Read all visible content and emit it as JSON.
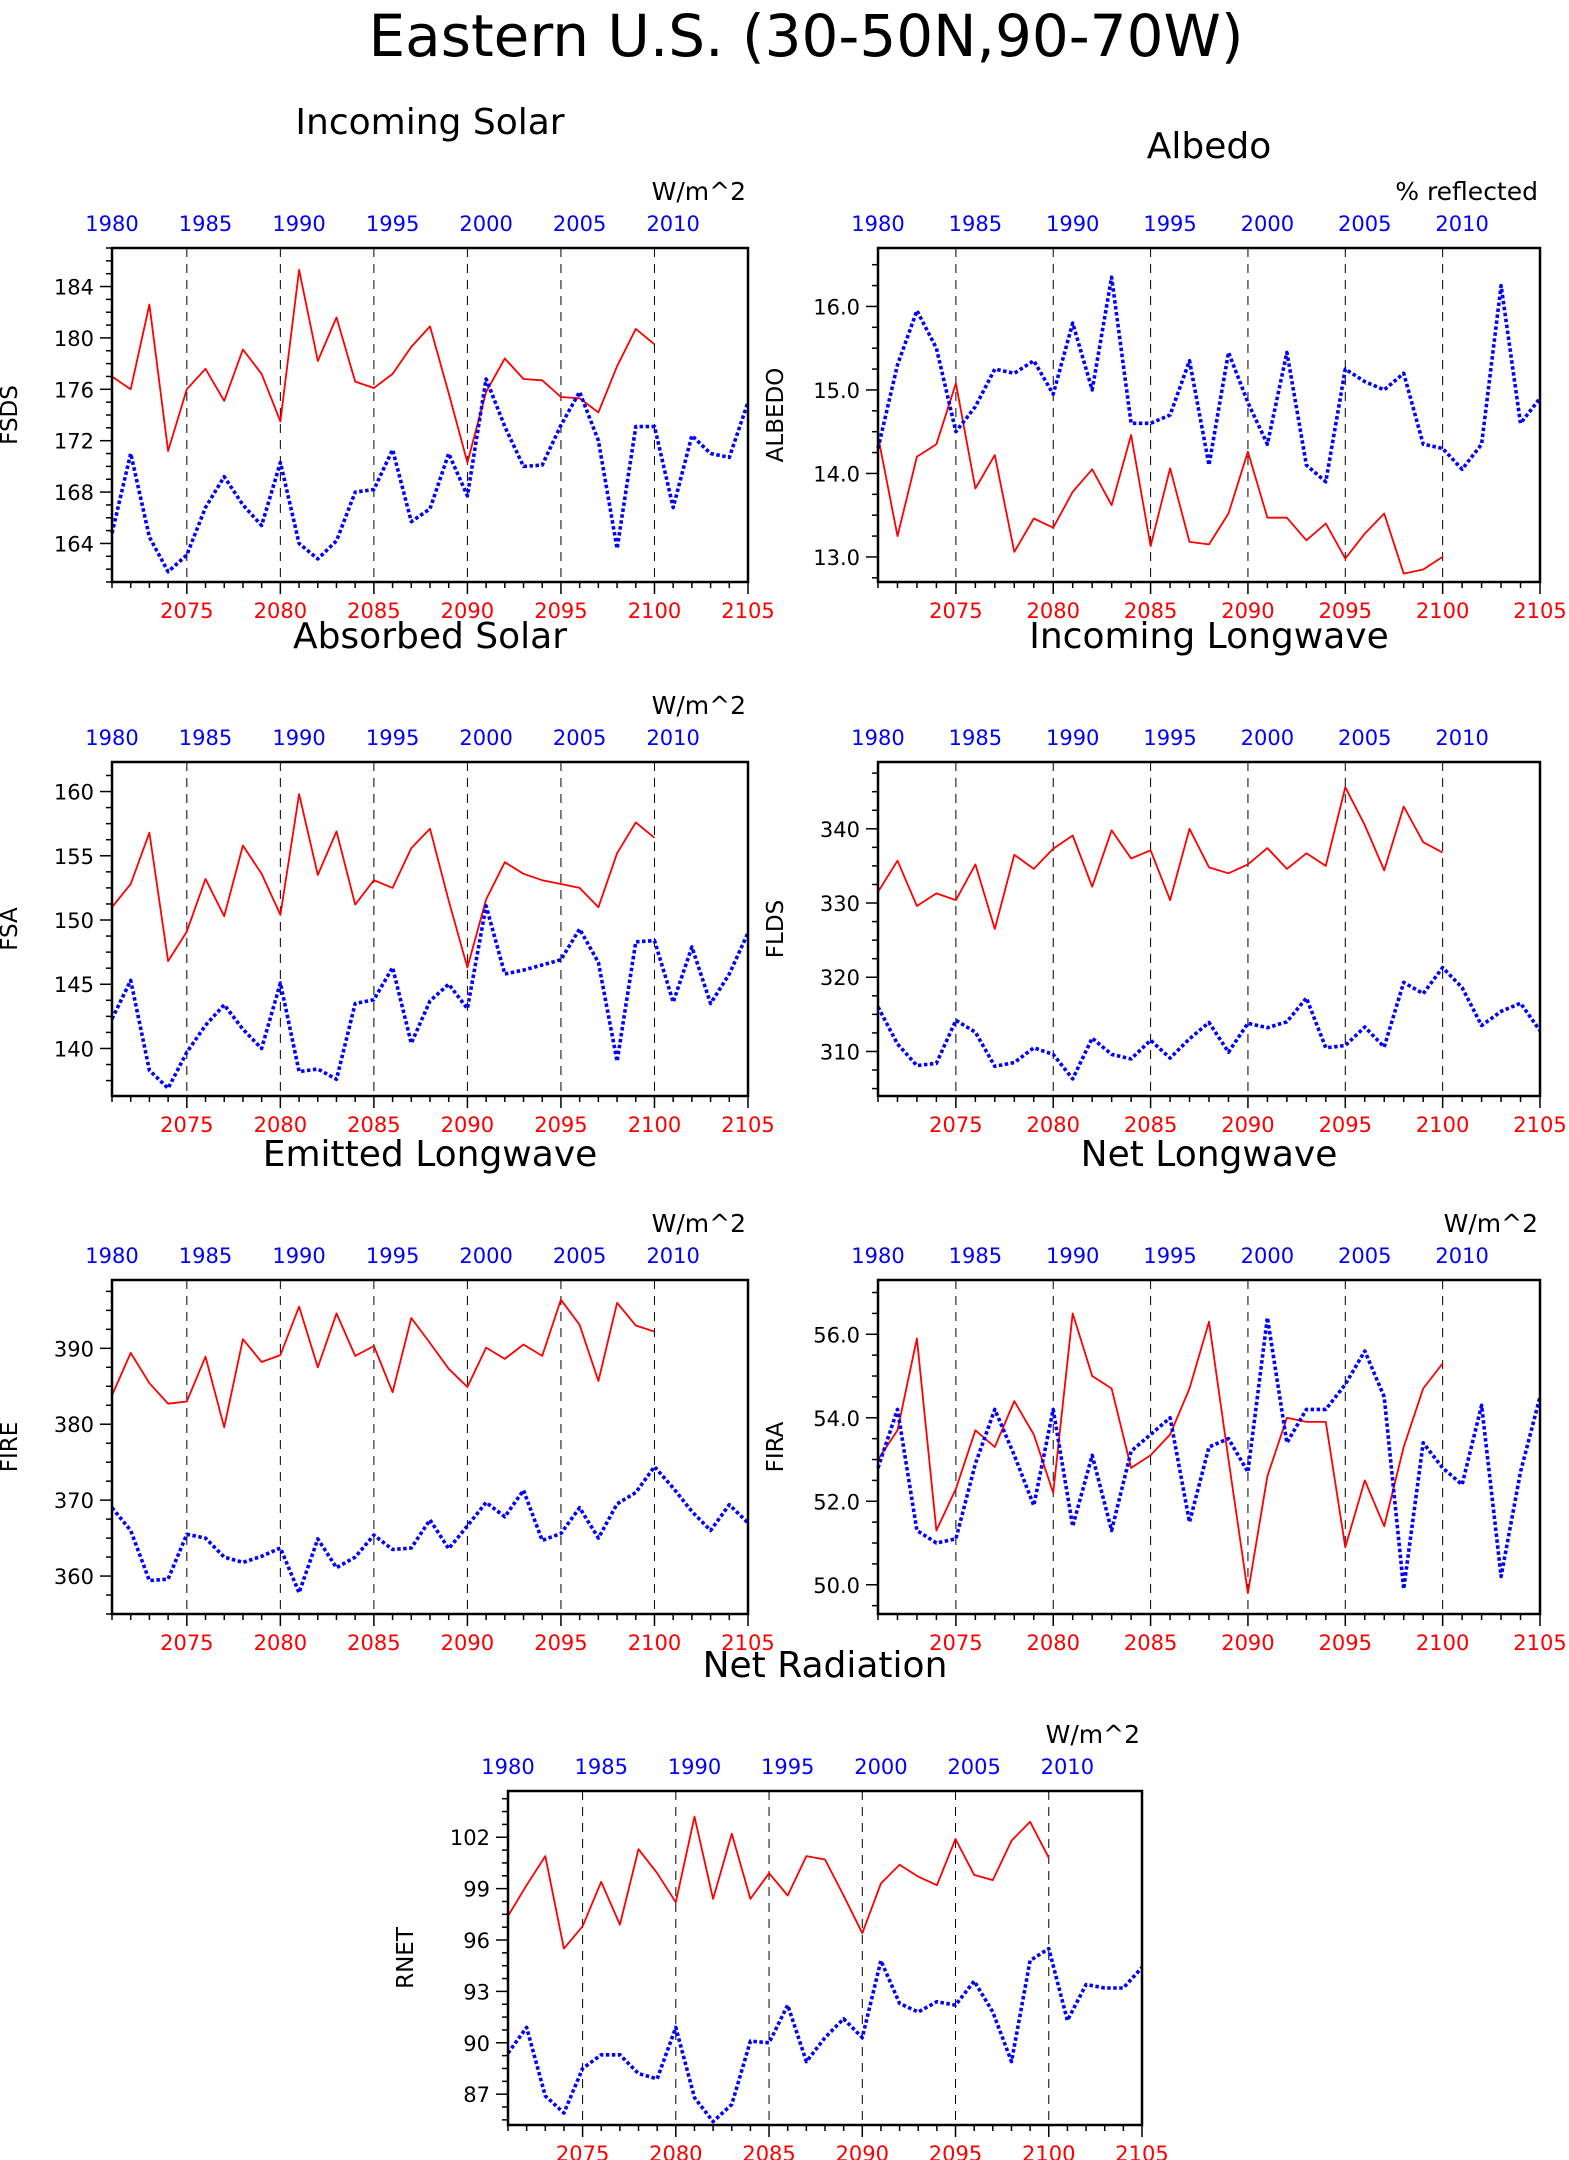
{
  "figure": {
    "title": "Eastern U.S. (30-50N,90-70W)",
    "colors": {
      "model": "#ff0000",
      "obs": "#0000ff",
      "frame": "#000000"
    }
  },
  "chart_data": [
    {
      "type": "line",
      "title": "Incoming Solar",
      "units": "W/m^2",
      "ylabel": "FSDS",
      "xlim_bottom": [
        2071,
        2105
      ],
      "xlim_top": [
        1980,
        2014
      ],
      "xticks_bottom": [
        2075,
        2080,
        2085,
        2090,
        2095,
        2100,
        2105
      ],
      "xticks_top": [
        1980,
        1985,
        1990,
        1995,
        2000,
        2005,
        2010
      ],
      "ylim": [
        161,
        187
      ],
      "yticks": [
        164,
        168,
        172,
        176,
        180,
        184
      ],
      "ytick_labels": [
        "164",
        "168",
        "172",
        "176",
        "180",
        "184"
      ],
      "grid_x": [
        2075,
        2080,
        2085,
        2090,
        2095,
        2100
      ],
      "series": [
        {
          "axis": "bottom",
          "style": "solid",
          "color": "#ff0000",
          "x_start": 2071,
          "values": [
            177,
            176,
            182.6,
            171.2,
            176.0,
            177.6,
            175.1,
            179.1,
            177.2,
            173.5,
            185.3,
            178.2,
            181.6,
            176.6,
            176.1,
            177.2,
            179.3,
            180.9,
            175.7,
            170.3,
            175.8,
            178.4,
            176.8,
            176.7,
            175.4,
            175.3,
            174.2,
            177.8,
            180.7,
            179.5
          ]
        },
        {
          "axis": "top",
          "style": "dotted",
          "color": "#0000ff",
          "x_start": 1980,
          "values": [
            164.8,
            171.0,
            164.5,
            161.8,
            163.1,
            166.8,
            169.2,
            167.0,
            165.4,
            170.3,
            164.0,
            162.8,
            164.2,
            168.0,
            168.2,
            171.3,
            165.7,
            166.7,
            171.0,
            167.7,
            176.8,
            173.1,
            170.0,
            170.1,
            173.2,
            175.8,
            172.0,
            163.6,
            173.1,
            173.1,
            166.8,
            172.4,
            171.0,
            170.7,
            175.0
          ]
        }
      ]
    },
    {
      "type": "line",
      "title": "Albedo",
      "units": "% reflected",
      "ylabel": "ALBEDO",
      "xlim_bottom": [
        2071,
        2105
      ],
      "xlim_top": [
        1980,
        2014
      ],
      "xticks_bottom": [
        2075,
        2080,
        2085,
        2090,
        2095,
        2100,
        2105
      ],
      "xticks_top": [
        1980,
        1985,
        1990,
        1995,
        2000,
        2005,
        2010
      ],
      "ylim": [
        12.7,
        16.7
      ],
      "yticks": [
        13.0,
        14.0,
        15.0,
        16.0
      ],
      "ytick_labels": [
        "13.0",
        "14.0",
        "15.0",
        "16.0"
      ],
      "grid_x": [
        2075,
        2080,
        2085,
        2090,
        2095,
        2100
      ],
      "series": [
        {
          "axis": "bottom",
          "style": "solid",
          "color": "#ff0000",
          "x_start": 2071,
          "values": [
            14.45,
            13.25,
            14.2,
            14.35,
            15.08,
            13.82,
            14.22,
            13.06,
            13.46,
            13.35,
            13.78,
            14.05,
            13.62,
            14.46,
            13.13,
            14.06,
            13.18,
            13.15,
            13.52,
            14.26,
            13.47,
            13.47,
            13.2,
            13.4,
            12.98,
            13.28,
            13.52,
            12.8,
            12.85,
            13.0
          ]
        },
        {
          "axis": "top",
          "style": "dotted",
          "color": "#0000ff",
          "x_start": 1980,
          "values": [
            14.3,
            15.3,
            15.95,
            15.5,
            14.5,
            14.8,
            15.25,
            15.2,
            15.35,
            14.95,
            15.8,
            15.0,
            16.35,
            14.6,
            14.6,
            14.7,
            15.35,
            14.1,
            15.45,
            14.85,
            14.35,
            15.45,
            14.1,
            13.9,
            15.25,
            15.1,
            15.0,
            15.2,
            14.35,
            14.3,
            14.05,
            14.35,
            16.25,
            14.6,
            14.9
          ]
        }
      ]
    },
    {
      "type": "line",
      "title": "Absorbed Solar",
      "units": "W/m^2",
      "ylabel": "FSA",
      "xlim_bottom": [
        2071,
        2105
      ],
      "xlim_top": [
        1980,
        2014
      ],
      "xticks_bottom": [
        2075,
        2080,
        2085,
        2090,
        2095,
        2100,
        2105
      ],
      "xticks_top": [
        1980,
        1985,
        1990,
        1995,
        2000,
        2005,
        2010
      ],
      "ylim": [
        136.3,
        162.3
      ],
      "yticks": [
        140,
        145,
        150,
        155,
        160
      ],
      "ytick_labels": [
        "140",
        "145",
        "150",
        "155",
        "160"
      ],
      "grid_x": [
        2075,
        2080,
        2085,
        2090,
        2095,
        2100
      ],
      "series": [
        {
          "axis": "bottom",
          "style": "solid",
          "color": "#ff0000",
          "x_start": 2071,
          "values": [
            151.0,
            152.8,
            156.8,
            146.8,
            149.1,
            153.2,
            150.3,
            155.8,
            153.6,
            150.4,
            159.8,
            153.5,
            156.9,
            151.2,
            153.1,
            152.5,
            155.6,
            157.1,
            151.5,
            146.3,
            151.6,
            154.5,
            153.6,
            153.1,
            152.8,
            152.5,
            151.0,
            155.2,
            157.6,
            156.4
          ]
        },
        {
          "axis": "top",
          "style": "dotted",
          "color": "#0000ff",
          "x_start": 1980,
          "values": [
            142.3,
            145.3,
            138.3,
            136.9,
            139.7,
            141.8,
            143.4,
            141.5,
            140.0,
            145.1,
            138.2,
            138.4,
            137.6,
            143.5,
            143.8,
            146.3,
            140.4,
            143.7,
            145.0,
            143.1,
            151.1,
            145.8,
            146.1,
            146.5,
            146.9,
            149.3,
            146.7,
            139.0,
            148.3,
            148.4,
            143.6,
            147.9,
            143.5,
            145.8,
            149.0
          ]
        }
      ]
    },
    {
      "type": "line",
      "title": "Incoming Longwave",
      "units": "",
      "ylabel": "FLDS",
      "xlim_bottom": [
        2071,
        2105
      ],
      "xlim_top": [
        1980,
        2014
      ],
      "xticks_bottom": [
        2075,
        2080,
        2085,
        2090,
        2095,
        2100,
        2105
      ],
      "xticks_top": [
        1980,
        1985,
        1990,
        1995,
        2000,
        2005,
        2010
      ],
      "ylim": [
        304,
        349
      ],
      "yticks": [
        310,
        320,
        330,
        340
      ],
      "ytick_labels": [
        "310",
        "320",
        "330",
        "340"
      ],
      "grid_x": [
        2075,
        2080,
        2085,
        2090,
        2095,
        2100
      ],
      "series": [
        {
          "axis": "bottom",
          "style": "solid",
          "color": "#ff0000",
          "x_start": 2071,
          "values": [
            331.5,
            335.7,
            329.6,
            331.3,
            330.4,
            335.2,
            326.5,
            336.5,
            334.6,
            337.3,
            339.1,
            332.2,
            339.8,
            336.0,
            337.1,
            330.4,
            340.0,
            334.8,
            334.0,
            335.2,
            337.4,
            334.6,
            336.7,
            335.0,
            345.6,
            340.5,
            334.4,
            343.0,
            338.2,
            336.8
          ]
        },
        {
          "axis": "top",
          "style": "dotted",
          "color": "#0000ff",
          "x_start": 1980,
          "values": [
            316.0,
            311.0,
            308.1,
            308.4,
            314.2,
            312.6,
            308.0,
            308.5,
            310.5,
            309.6,
            306.3,
            311.8,
            309.6,
            309.0,
            311.5,
            309.1,
            311.7,
            313.9,
            309.9,
            313.8,
            313.2,
            314.0,
            317.2,
            310.5,
            310.8,
            313.3,
            310.6,
            319.3,
            317.8,
            321.3,
            318.6,
            313.5,
            315.4,
            316.5,
            312.8
          ]
        }
      ]
    },
    {
      "type": "line",
      "title": "Emitted Longwave",
      "units": "W/m^2",
      "ylabel": "FIRE",
      "xlim_bottom": [
        2071,
        2105
      ],
      "xlim_top": [
        1980,
        2014
      ],
      "xticks_bottom": [
        2075,
        2080,
        2085,
        2090,
        2095,
        2100,
        2105
      ],
      "xticks_top": [
        1980,
        1985,
        1990,
        1995,
        2000,
        2005,
        2010
      ],
      "ylim": [
        355,
        399
      ],
      "yticks": [
        360,
        370,
        380,
        390
      ],
      "ytick_labels": [
        "360",
        "370",
        "380",
        "390"
      ],
      "grid_x": [
        2075,
        2080,
        2085,
        2090,
        2095,
        2100
      ],
      "series": [
        {
          "axis": "bottom",
          "style": "solid",
          "color": "#ff0000",
          "x_start": 2071,
          "values": [
            383.8,
            389.4,
            385.4,
            382.7,
            383.0,
            388.9,
            379.6,
            391.2,
            388.2,
            389.1,
            395.5,
            387.5,
            394.6,
            389.0,
            390.3,
            384.2,
            394.0,
            390.7,
            387.3,
            384.9,
            390.1,
            388.6,
            390.5,
            389.0,
            396.4,
            393.1,
            385.7,
            396.0,
            393.0,
            392.2
          ]
        },
        {
          "axis": "top",
          "style": "dotted",
          "color": "#0000ff",
          "x_start": 1980,
          "values": [
            369.0,
            366.0,
            359.4,
            359.6,
            365.5,
            365.0,
            362.5,
            361.8,
            362.6,
            363.7,
            357.8,
            364.9,
            361.1,
            362.5,
            365.4,
            363.5,
            363.7,
            367.4,
            363.6,
            366.6,
            369.7,
            367.8,
            371.3,
            364.7,
            365.6,
            369.0,
            365.0,
            369.5,
            371.0,
            374.4,
            371.6,
            368.5,
            366.0,
            369.4,
            367.0
          ]
        }
      ]
    },
    {
      "type": "line",
      "title": "Net Longwave",
      "units": "W/m^2",
      "ylabel": "FIRA",
      "xlim_bottom": [
        2071,
        2105
      ],
      "xlim_top": [
        1980,
        2014
      ],
      "xticks_bottom": [
        2075,
        2080,
        2085,
        2090,
        2095,
        2100,
        2105
      ],
      "xticks_top": [
        1980,
        1985,
        1990,
        1995,
        2000,
        2005,
        2010
      ],
      "ylim": [
        49.3,
        57.3
      ],
      "yticks": [
        50,
        52,
        54,
        56
      ],
      "ytick_labels": [
        "50.0",
        "52.0",
        "54.0",
        "56.0"
      ],
      "grid_x": [
        2075,
        2080,
        2085,
        2090,
        2095,
        2100
      ],
      "series": [
        {
          "axis": "bottom",
          "style": "solid",
          "color": "#ff0000",
          "x_start": 2071,
          "values": [
            53.0,
            53.7,
            55.9,
            51.3,
            52.3,
            53.7,
            53.3,
            54.4,
            53.6,
            52.2,
            56.5,
            55.0,
            54.7,
            52.8,
            53.1,
            53.6,
            54.7,
            56.3,
            53.0,
            49.8,
            52.6,
            54.0,
            53.9,
            53.9,
            50.9,
            52.5,
            51.4,
            53.3,
            54.7,
            55.3
          ]
        },
        {
          "axis": "top",
          "style": "dotted",
          "color": "#0000ff",
          "x_start": 1980,
          "values": [
            52.8,
            54.2,
            51.3,
            51.0,
            51.1,
            52.9,
            54.2,
            53.1,
            51.9,
            54.2,
            51.4,
            53.1,
            51.3,
            53.2,
            53.6,
            54.0,
            51.5,
            53.3,
            53.5,
            52.7,
            56.4,
            53.4,
            54.2,
            54.2,
            54.8,
            55.6,
            54.5,
            49.9,
            53.4,
            52.8,
            52.4,
            54.3,
            50.2,
            52.7,
            54.5
          ]
        }
      ]
    },
    {
      "type": "line",
      "title": "Net Radiation",
      "units": "W/m^2",
      "ylabel": "RNET",
      "xlim_bottom": [
        2071,
        2105
      ],
      "xlim_top": [
        1980,
        2014
      ],
      "xticks_bottom": [
        2075,
        2080,
        2085,
        2090,
        2095,
        2100,
        2105
      ],
      "xticks_top": [
        1980,
        1985,
        1990,
        1995,
        2000,
        2005,
        2010
      ],
      "ylim": [
        85.2,
        104.7
      ],
      "yticks": [
        87,
        90,
        93,
        96,
        99,
        102
      ],
      "ytick_labels": [
        "87",
        "90",
        "93",
        "96",
        "99",
        "102"
      ],
      "grid_x": [
        2075,
        2080,
        2085,
        2090,
        2095,
        2100
      ],
      "series": [
        {
          "axis": "bottom",
          "style": "solid",
          "color": "#ff0000",
          "x_start": 2071,
          "values": [
            97.4,
            99.2,
            100.9,
            95.5,
            96.8,
            99.4,
            96.9,
            101.3,
            99.9,
            98.2,
            103.2,
            98.4,
            102.2,
            98.4,
            99.9,
            98.6,
            100.9,
            100.7,
            98.6,
            96.4,
            99.3,
            100.4,
            99.7,
            99.2,
            101.9,
            99.8,
            99.5,
            101.8,
            102.9,
            100.8
          ]
        },
        {
          "axis": "top",
          "style": "dotted",
          "color": "#0000ff",
          "x_start": 1980,
          "values": [
            89.4,
            90.9,
            86.9,
            85.9,
            88.5,
            89.3,
            89.3,
            88.2,
            87.9,
            90.9,
            86.8,
            85.4,
            86.4,
            90.1,
            90.0,
            92.2,
            88.9,
            90.3,
            91.4,
            90.3,
            94.8,
            92.3,
            91.8,
            92.4,
            92.2,
            93.6,
            91.8,
            88.9,
            94.8,
            95.5,
            91.3,
            93.4,
            93.2,
            93.2,
            94.4
          ]
        }
      ]
    }
  ]
}
